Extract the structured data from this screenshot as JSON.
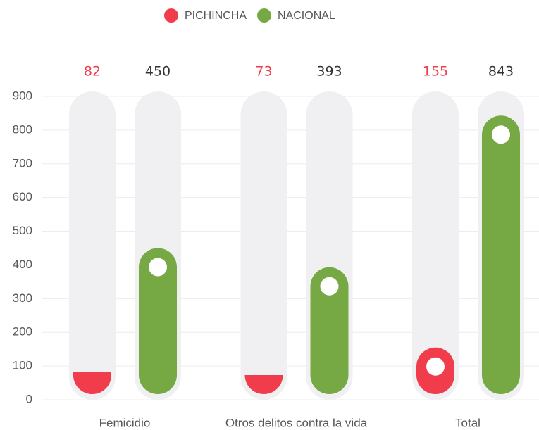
{
  "chart_data": {
    "type": "bar",
    "categories": [
      "Femicidio",
      "Otros delitos contra la vida",
      "Total"
    ],
    "series": [
      {
        "name": "PICHINCHA",
        "color": "#f03c4b",
        "values": [
          82,
          73,
          155
        ]
      },
      {
        "name": "NACIONAL",
        "color": "#76a843",
        "values": [
          450,
          393,
          843
        ]
      }
    ],
    "ylim": [
      0,
      900
    ],
    "yticks": [
      0,
      100,
      200,
      300,
      400,
      500,
      600,
      700,
      800,
      900
    ],
    "grid": true,
    "legend": "top"
  }
}
